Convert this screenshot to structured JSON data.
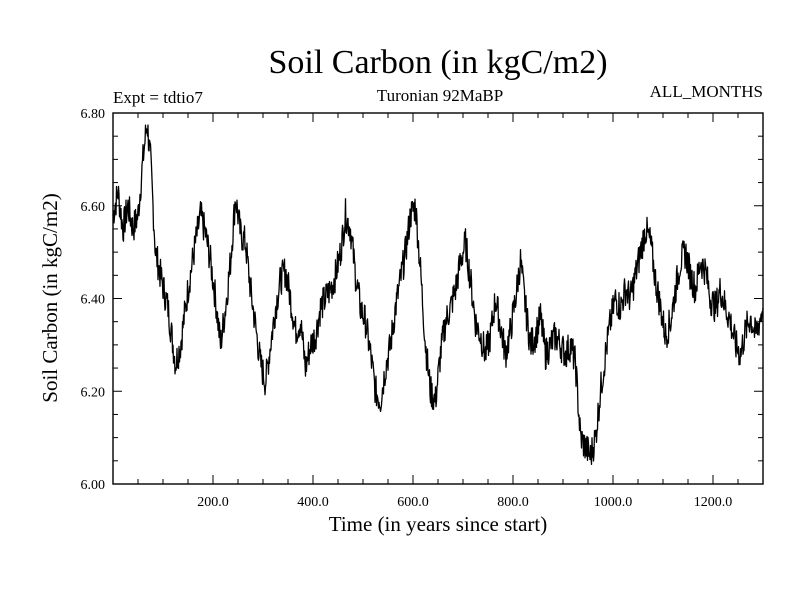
{
  "chart_data": {
    "type": "line",
    "title": "Soil Carbon (in kgC/m2)",
    "subtitle": "Turonian  92MaBP",
    "experiment": "Expt = tdtio7",
    "months_label": "ALL_MONTHS",
    "xlabel": "Time (in years since start)",
    "ylabel": "Soil Carbon (in kgC/m2)",
    "xlim": [
      0,
      1300
    ],
    "ylim": [
      6.0,
      6.8
    ],
    "x_ticks": [
      200,
      400,
      600,
      800,
      1000,
      1200
    ],
    "x_tick_labels": [
      "200.0",
      "400.0",
      "600.0",
      "800.0",
      "1000.0",
      "1200.0"
    ],
    "y_ticks": [
      6.0,
      6.2,
      6.4,
      6.6,
      6.8
    ],
    "y_tick_labels": [
      "6.00",
      "6.20",
      "6.40",
      "6.60",
      "6.80"
    ],
    "series": [
      {
        "name": "Soil Carbon",
        "x": [
          0,
          10,
          20,
          30,
          40,
          50,
          60,
          68,
          75,
          85,
          95,
          110,
          125,
          135,
          150,
          165,
          175,
          185,
          195,
          205,
          215,
          225,
          235,
          245,
          255,
          265,
          275,
          285,
          295,
          305,
          315,
          325,
          335,
          345,
          355,
          365,
          375,
          385,
          395,
          405,
          415,
          425,
          435,
          445,
          455,
          465,
          475,
          485,
          495,
          505,
          515,
          525,
          535,
          545,
          555,
          565,
          575,
          585,
          595,
          605,
          615,
          625,
          635,
          645,
          655,
          665,
          675,
          685,
          695,
          705,
          715,
          725,
          735,
          745,
          755,
          765,
          775,
          785,
          795,
          805,
          815,
          825,
          835,
          845,
          855,
          865,
          875,
          885,
          895,
          905,
          915,
          925,
          935,
          945,
          955,
          965,
          975,
          985,
          995,
          1005,
          1015,
          1025,
          1035,
          1045,
          1055,
          1065,
          1075,
          1085,
          1095,
          1105,
          1115,
          1125,
          1135,
          1145,
          1155,
          1165,
          1175,
          1185,
          1195,
          1205,
          1215,
          1225,
          1235,
          1245,
          1255,
          1265,
          1275,
          1285,
          1295,
          1300
        ],
        "values": [
          6.58,
          6.63,
          6.55,
          6.6,
          6.55,
          6.58,
          6.7,
          6.78,
          6.7,
          6.5,
          6.45,
          6.38,
          6.26,
          6.3,
          6.42,
          6.52,
          6.58,
          6.54,
          6.48,
          6.4,
          6.3,
          6.38,
          6.48,
          6.62,
          6.54,
          6.52,
          6.42,
          6.34,
          6.26,
          6.22,
          6.3,
          6.38,
          6.44,
          6.46,
          6.4,
          6.33,
          6.35,
          6.25,
          6.3,
          6.32,
          6.38,
          6.4,
          6.42,
          6.45,
          6.5,
          6.58,
          6.55,
          6.45,
          6.38,
          6.35,
          6.28,
          6.2,
          6.18,
          6.25,
          6.3,
          6.38,
          6.44,
          6.5,
          6.58,
          6.6,
          6.46,
          6.3,
          6.2,
          6.18,
          6.28,
          6.35,
          6.38,
          6.42,
          6.48,
          6.52,
          6.44,
          6.35,
          6.32,
          6.28,
          6.32,
          6.4,
          6.34,
          6.28,
          6.33,
          6.4,
          6.48,
          6.38,
          6.3,
          6.32,
          6.36,
          6.28,
          6.3,
          6.32,
          6.3,
          6.28,
          6.3,
          6.26,
          6.1,
          6.08,
          6.06,
          6.1,
          6.2,
          6.28,
          6.35,
          6.4,
          6.38,
          6.42,
          6.4,
          6.45,
          6.5,
          6.55,
          6.52,
          6.44,
          6.38,
          6.32,
          6.35,
          6.42,
          6.48,
          6.5,
          6.45,
          6.42,
          6.48,
          6.46,
          6.4,
          6.38,
          6.42,
          6.38,
          6.35,
          6.3,
          6.28,
          6.33,
          6.36,
          6.32,
          6.36,
          6.38
        ]
      }
    ]
  }
}
